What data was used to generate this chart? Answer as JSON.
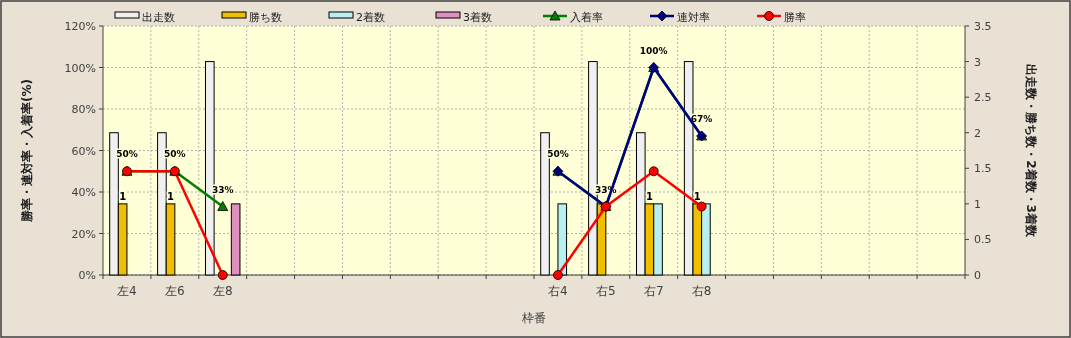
{
  "chart_data": {
    "type": "bar",
    "xlabel": "枠番",
    "ylabel": "勝率・連対率・入着率(%)",
    "y2label": "出走数・勝ち数・2着数・3着数",
    "categories": [
      "左4",
      "左6",
      "左8",
      null,
      null,
      null,
      null,
      null,
      null,
      "右4",
      "右5",
      "右7",
      "右8",
      null,
      null,
      null,
      null,
      null
    ],
    "series": [
      {
        "name": "出走数",
        "axis": "y2",
        "color": "#f0f0f0",
        "values": [
          2,
          2,
          3,
          null,
          null,
          null,
          null,
          null,
          null,
          2,
          3,
          2,
          3,
          null,
          null,
          null,
          null,
          null
        ]
      },
      {
        "name": "勝ち数",
        "axis": "y2",
        "color": "#f0c000",
        "values": [
          1,
          1,
          0,
          null,
          null,
          null,
          null,
          null,
          null,
          0,
          1,
          1,
          1,
          null,
          null,
          null,
          null,
          null
        ],
        "value_labels": [
          "1",
          "1",
          null,
          null,
          null,
          null,
          null,
          null,
          null,
          null,
          null,
          "1",
          "1",
          null,
          null,
          null,
          null,
          null
        ]
      },
      {
        "name": "2着数",
        "axis": "y2",
        "color": "#b8f0f0",
        "values": [
          0,
          0,
          0,
          null,
          null,
          null,
          null,
          null,
          null,
          1,
          0,
          1,
          1,
          null,
          null,
          null,
          null,
          null
        ]
      },
      {
        "name": "3着数",
        "axis": "y2",
        "color": "#e090c0",
        "values": [
          0,
          0,
          1,
          null,
          null,
          null,
          null,
          null,
          null,
          0,
          0,
          0,
          0,
          null,
          null,
          null,
          null,
          null
        ]
      },
      {
        "name": "入着率",
        "type": "line",
        "marker": "triangle",
        "color": "#008000",
        "values": [
          50,
          50,
          33,
          null,
          null,
          null,
          null,
          null,
          null,
          50,
          33,
          100,
          67,
          null,
          null,
          null,
          null,
          null
        ],
        "value_labels": [
          "50%",
          "50%",
          "33%",
          null,
          null,
          null,
          null,
          null,
          null,
          "50%",
          "33%",
          "100%",
          "67%",
          null,
          null,
          null,
          null,
          null
        ]
      },
      {
        "name": "連対率",
        "type": "line",
        "marker": "diamond",
        "color": "#000080",
        "values": [
          null,
          null,
          null,
          null,
          null,
          null,
          null,
          null,
          null,
          50,
          33,
          100,
          67,
          null,
          null,
          null,
          null,
          null
        ]
      },
      {
        "name": "勝率",
        "type": "line",
        "marker": "circle",
        "color": "#ff0000",
        "values": [
          50,
          50,
          0,
          null,
          null,
          null,
          null,
          null,
          null,
          0,
          33,
          50,
          33,
          null,
          null,
          null,
          null,
          null
        ]
      }
    ],
    "ylim": [
      0,
      120
    ],
    "yticks": [
      {
        "value": 0,
        "label": "0%"
      },
      {
        "value": 20,
        "label": "20%"
      },
      {
        "value": 40,
        "label": "40%"
      },
      {
        "value": 60,
        "label": "60%"
      },
      {
        "value": 80,
        "label": "80%"
      },
      {
        "value": 100,
        "label": "100%"
      },
      {
        "value": 120,
        "label": "120%"
      }
    ],
    "y2lim": [
      0,
      3.5
    ],
    "y2ticks": [
      0,
      0.5,
      1,
      1.5,
      2,
      2.5,
      3,
      3.5
    ],
    "grid": true,
    "legend": "top"
  }
}
